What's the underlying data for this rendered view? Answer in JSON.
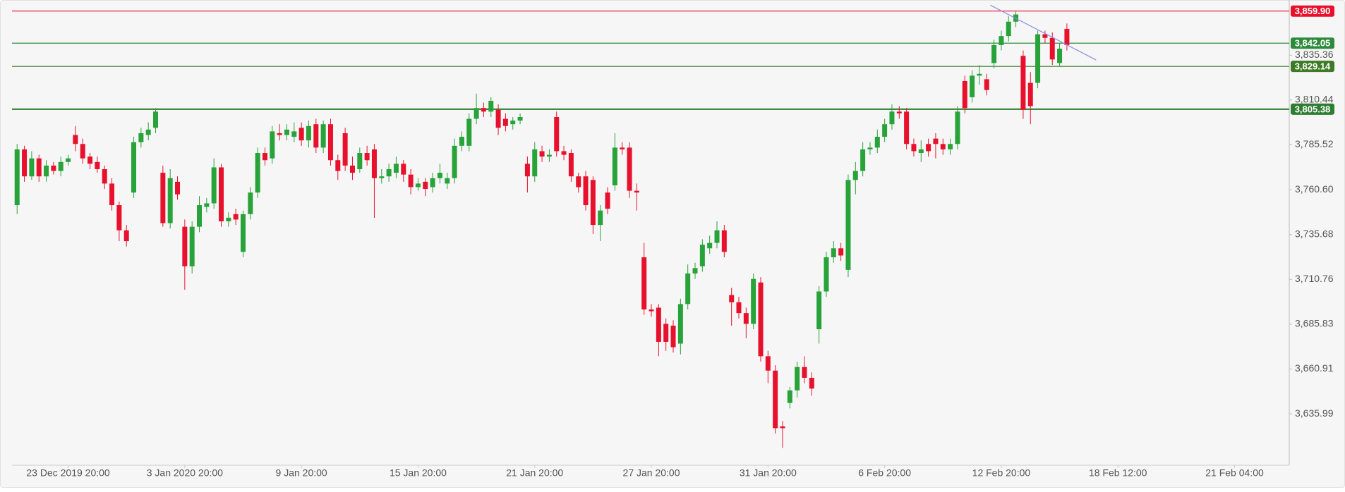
{
  "chart_data": {
    "type": "candlestick",
    "up_color": "#27a33a",
    "down_color": "#e8112d",
    "open": [
      3752,
      3783,
      3768,
      3778,
      3768,
      3774,
      3771,
      3776,
      3791,
      3786,
      3779,
      3776,
      3772,
      3764,
      3752,
      3738,
      3759,
      3787,
      3791,
      3795,
      3770,
      3742,
      3765,
      3740,
      3718,
      3740,
      3751,
      3753,
      3773,
      3743,
      3747,
      3726,
      3747,
      3759,
      3781,
      3778,
      3792,
      3791,
      3790,
      3795,
      3788,
      3797,
      3784,
      3797,
      3777,
      3792,
      3774,
      3772,
      3781,
      3783,
      3767,
      3768,
      3770,
      3775,
      3769,
      3762,
      3765,
      3762,
      3767,
      3764,
      3767,
      3785,
      3785,
      3800,
      3806,
      3804,
      3805,
      3800,
      3797,
      3799,
      3775,
      3768,
      3782,
      3779,
      3801,
      3782,
      3781,
      3768,
      3768,
      3766,
      3741,
      3759,
      3763,
      3784,
      3784,
      3760,
      3723,
      3694,
      3695,
      3686,
      3685,
      3675,
      3697,
      3714,
      3718,
      3728,
      3731,
      3738,
      3702,
      3698,
      3692,
      3686,
      3709,
      3668,
      3660,
      3629,
      3642,
      3649,
      3662,
      3656,
      3683,
      3704,
      3723,
      3728,
      3716,
      3766,
      3771,
      3783,
      3784,
      3790,
      3797,
      3804,
      3804,
      3786,
      3781,
      3786,
      3789,
      3786,
      3783,
      3786,
      3821,
      3812,
      3824,
      3822,
      3831,
      3841,
      3846,
      3854,
      3835,
      3820,
      3820,
      3847,
      3845,
      3831,
      3850
    ],
    "high": [
      3786,
      3785,
      3782,
      3780,
      3777,
      3776,
      3779,
      3780,
      3796,
      3789,
      3781,
      3779,
      3774,
      3767,
      3754,
      3741,
      3790,
      3795,
      3798,
      3806,
      3774,
      3772,
      3768,
      3744,
      3743,
      3757,
      3756,
      3778,
      3775,
      3748,
      3750,
      3749,
      3762,
      3784,
      3784,
      3796,
      3797,
      3797,
      3798,
      3798,
      3799,
      3800,
      3799,
      3800,
      3780,
      3795,
      3779,
      3784,
      3785,
      3786,
      3772,
      3775,
      3779,
      3777,
      3772,
      3767,
      3767,
      3770,
      3775,
      3770,
      3789,
      3793,
      3803,
      3814,
      3809,
      3812,
      3808,
      3803,
      3801,
      3803,
      3779,
      3787,
      3785,
      3783,
      3804,
      3785,
      3783,
      3770,
      3771,
      3768,
      3752,
      3762,
      3792,
      3787,
      3787,
      3764,
      3731,
      3697,
      3697,
      3689,
      3688,
      3700,
      3719,
      3720,
      3733,
      3735,
      3743,
      3741,
      3706,
      3701,
      3695,
      3714,
      3712,
      3671,
      3663,
      3632,
      3651,
      3665,
      3668,
      3659,
      3707,
      3726,
      3732,
      3731,
      3769,
      3776,
      3787,
      3787,
      3794,
      3800,
      3808,
      3807,
      3806,
      3789,
      3788,
      3789,
      3792,
      3789,
      3789,
      3807,
      3824,
      3827,
      3830,
      3825,
      3844,
      3849,
      3857,
      3860,
      3838,
      3826,
      3849,
      3849,
      3848,
      3842,
      3853
    ],
    "low": [
      3747,
      3765,
      3766,
      3765,
      3765,
      3769,
      3768,
      3774,
      3782,
      3775,
      3772,
      3770,
      3761,
      3749,
      3732,
      3729,
      3756,
      3784,
      3788,
      3792,
      3740,
      3739,
      3755,
      3705,
      3714,
      3737,
      3748,
      3750,
      3740,
      3740,
      3741,
      3723,
      3744,
      3756,
      3774,
      3775,
      3788,
      3788,
      3787,
      3785,
      3784,
      3781,
      3781,
      3774,
      3766,
      3771,
      3766,
      3770,
      3774,
      3745,
      3764,
      3765,
      3767,
      3765,
      3758,
      3760,
      3757,
      3759,
      3764,
      3761,
      3764,
      3782,
      3782,
      3797,
      3801,
      3801,
      3791,
      3793,
      3794,
      3797,
      3759,
      3765,
      3776,
      3776,
      3779,
      3777,
      3765,
      3759,
      3749,
      3736,
      3732,
      3747,
      3760,
      3780,
      3756,
      3749,
      3691,
      3690,
      3668,
      3671,
      3670,
      3669,
      3694,
      3711,
      3715,
      3725,
      3728,
      3723,
      3685,
      3689,
      3678,
      3683,
      3665,
      3653,
      3625,
      3617,
      3639,
      3645,
      3653,
      3646,
      3675,
      3701,
      3720,
      3721,
      3712,
      3758,
      3768,
      3780,
      3781,
      3787,
      3794,
      3800,
      3783,
      3779,
      3776,
      3779,
      3778,
      3780,
      3780,
      3783,
      3803,
      3809,
      3819,
      3813,
      3828,
      3838,
      3843,
      3851,
      3800,
      3797,
      3817,
      3842,
      3830,
      3829,
      3838
    ],
    "close": [
      3783,
      3768,
      3778,
      3768,
      3774,
      3771,
      3776,
      3778,
      3786,
      3778,
      3775,
      3772,
      3764,
      3752,
      3738,
      3732,
      3787,
      3792,
      3794,
      3804,
      3742,
      3767,
      3758,
      3718,
      3740,
      3752,
      3753,
      3773,
      3743,
      3745,
      3744,
      3747,
      3759,
      3781,
      3777,
      3793,
      3791,
      3794,
      3793,
      3788,
      3796,
      3784,
      3797,
      3777,
      3771,
      3774,
      3770,
      3781,
      3777,
      3767,
      3768,
      3772,
      3775,
      3769,
      3762,
      3764,
      3761,
      3767,
      3770,
      3767,
      3785,
      3790,
      3800,
      3806,
      3804,
      3810,
      3795,
      3796,
      3799,
      3801,
      3768,
      3783,
      3779,
      3780,
      3782,
      3780,
      3768,
      3762,
      3752,
      3741,
      3749,
      3750,
      3784,
      3783,
      3760,
      3759,
      3694,
      3693,
      3676,
      3676,
      3673,
      3697,
      3714,
      3717,
      3730,
      3731,
      3738,
      3726,
      3698,
      3692,
      3686,
      3711,
      3668,
      3660,
      3628,
      3628,
      3649,
      3662,
      3656,
      3650,
      3704,
      3723,
      3728,
      3724,
      3766,
      3771,
      3783,
      3784,
      3790,
      3797,
      3804,
      3803,
      3786,
      3782,
      3783,
      3782,
      3786,
      3783,
      3786,
      3804,
      3806,
      3824,
      3825,
      3816,
      3841,
      3846,
      3854,
      3858,
      3805,
      3807,
      3847,
      3845,
      3833,
      3839,
      3841
    ],
    "xlim": [
      -0.7,
      174.5
    ],
    "xticks": [
      {
        "value": 7,
        "label": "23 Dec 2019 20:00"
      },
      {
        "value": 23,
        "label": "3 Jan 2020 20:00"
      },
      {
        "value": 39,
        "label": "9 Jan 20:00"
      },
      {
        "value": 55,
        "label": "15 Jan 20:00"
      },
      {
        "value": 71,
        "label": "21 Jan 20:00"
      },
      {
        "value": 87,
        "label": "27 Jan 20:00"
      },
      {
        "value": 103,
        "label": "31 Jan 20:00"
      },
      {
        "value": 119,
        "label": "6 Feb 20:00"
      },
      {
        "value": 135,
        "label": "12 Feb 20:00"
      },
      {
        "value": 151,
        "label": "18 Feb 12:00"
      },
      {
        "value": 167,
        "label": "21 Feb 04:00"
      }
    ],
    "ylim": [
      3607.4,
      3863.7
    ],
    "yticks": [
      {
        "value": 3635.99,
        "label": "3,635.99"
      },
      {
        "value": 3660.91,
        "label": "3,660.91"
      },
      {
        "value": 3685.83,
        "label": "3,685.83"
      },
      {
        "value": 3710.76,
        "label": "3,710.76"
      },
      {
        "value": 3735.68,
        "label": "3,735.68"
      },
      {
        "value": 3760.6,
        "label": "3,760.60"
      },
      {
        "value": 3785.52,
        "label": "3,785.52"
      },
      {
        "value": 3810.44,
        "label": "3,810.44"
      },
      {
        "value": 3835.36,
        "label": "3,835.36"
      }
    ],
    "levels": [
      {
        "value": 3859.9,
        "label": "3,859.90",
        "color": "#e8112d"
      },
      {
        "value": 3842.05,
        "label": "3,842.05",
        "color": "#2e8b3d"
      },
      {
        "value": 3829.14,
        "label": "3,829.14",
        "color": "#3d7a25"
      },
      {
        "value": 3805.38,
        "label": "3,805.38",
        "color": "#2f7d32"
      }
    ],
    "trendline": {
      "x": [
        133.5,
        148
      ],
      "y": [
        3863.2,
        3832.7
      ],
      "color": "#8f8fe8"
    }
  }
}
